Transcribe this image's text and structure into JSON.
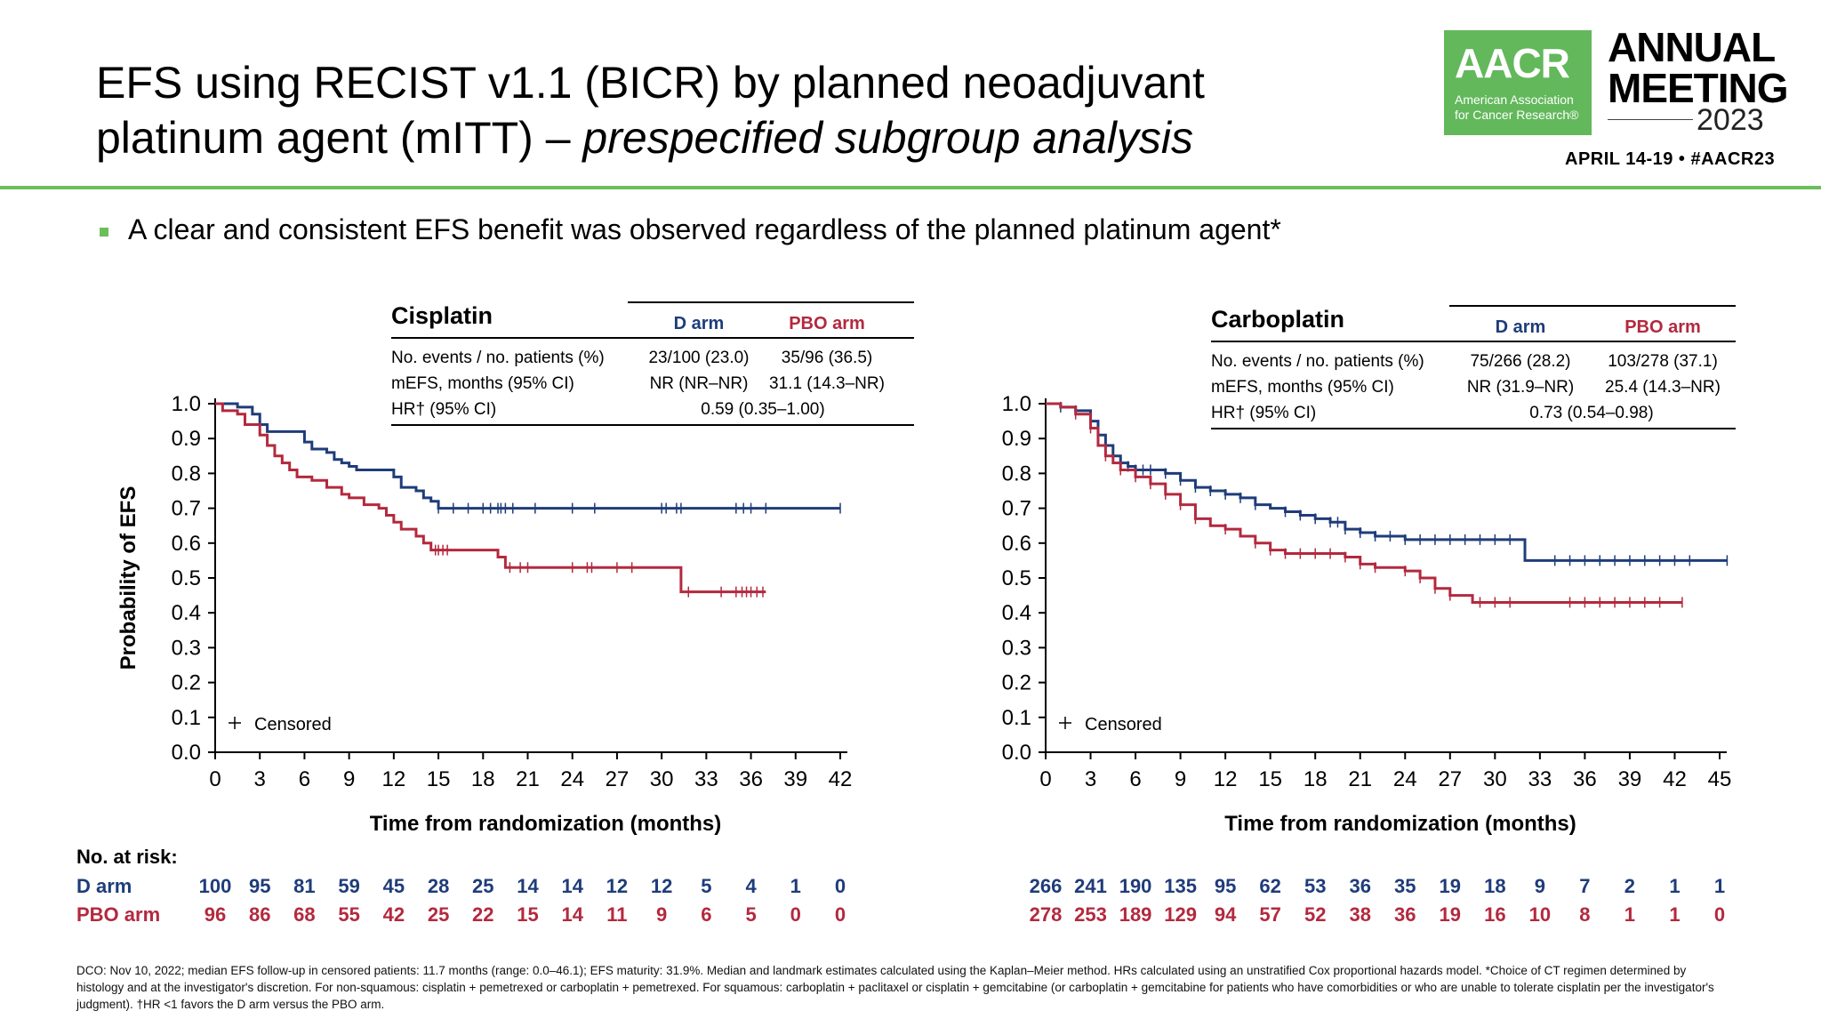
{
  "slide": {
    "title_line1": "EFS using RECIST v1.1 (BICR) by planned neoadjuvant",
    "title_line2_plain": "platinum agent (mITT) – ",
    "title_line2_italic": "prespecified subgroup analysis",
    "bullet": "A clear and consistent EFS benefit was observed regardless of the planned platinum agent*",
    "footnote": "DCO: Nov 10, 2022; median EFS follow-up in censored patients: 11.7 months (range: 0.0–46.1); EFS maturity: 31.9%. Median and landmark estimates calculated using the Kaplan–Meier method. HRs calculated using an unstratified Cox proportional hazards model. *Choice of CT regimen determined by histology and at the investigator's discretion. For non-squamous: cisplatin + pemetrexed or carboplatin + pemetrexed. For squamous: carboplatin + paclitaxel or cisplatin + gemcitabine (or carboplatin + gemcitabine for patients who have comorbidities or who are unable to tolerate cisplatin per the investigator's judgment). †HR <1 favors the D arm versus the PBO arm.",
    "risk_header": "No. at risk:"
  },
  "logo": {
    "acronym": "AACR",
    "org_line1": "American Association",
    "org_line2": "for Cancer Research®",
    "meeting_line1": "ANNUAL",
    "meeting_line2": "MEETING",
    "year": "2023",
    "dates": "APRIL 14-19 • #AACR23"
  },
  "colors": {
    "d_arm": "#1f3c7a",
    "pbo_arm": "#b3293e",
    "accent": "#6bbf59"
  },
  "chart_data": [
    {
      "type": "line",
      "title": "Cisplatin",
      "xlabel": "Time from randomization (months)",
      "ylabel": "Probability of EFS",
      "xlim": [
        0,
        42
      ],
      "ylim": [
        0,
        1
      ],
      "xticks": [
        0,
        3,
        6,
        9,
        12,
        15,
        18,
        21,
        24,
        27,
        30,
        33,
        36,
        39,
        42
      ],
      "yticks": [
        "0.0",
        "0.1",
        "0.2",
        "0.3",
        "0.4",
        "0.5",
        "0.6",
        "0.7",
        "0.8",
        "0.9",
        "1.0"
      ],
      "censored_label": "Censored",
      "table": {
        "headers": [
          "D arm",
          "PBO arm"
        ],
        "rows": [
          {
            "label": "No. events / no. patients (%)",
            "d": "23/100 (23.0)",
            "pbo": "35/96 (36.5)"
          },
          {
            "label": "mEFS, months (95% CI)",
            "d": "NR (NR–NR)",
            "pbo": "31.1 (14.3–NR)"
          },
          {
            "label": "HR† (95% CI)",
            "hr": "0.59 (0.35–1.00)"
          }
        ]
      },
      "series": [
        {
          "name": "D arm",
          "steps": [
            [
              0,
              1.0
            ],
            [
              1.5,
              0.99
            ],
            [
              2.5,
              0.97
            ],
            [
              3,
              0.94
            ],
            [
              3.5,
              0.92
            ],
            [
              6,
              0.89
            ],
            [
              6.5,
              0.87
            ],
            [
              7.5,
              0.86
            ],
            [
              8,
              0.84
            ],
            [
              8.5,
              0.83
            ],
            [
              9,
              0.82
            ],
            [
              9.5,
              0.81
            ],
            [
              12,
              0.79
            ],
            [
              12.5,
              0.76
            ],
            [
              13.5,
              0.75
            ],
            [
              14,
              0.73
            ],
            [
              14.5,
              0.72
            ],
            [
              15,
              0.7
            ],
            [
              42,
              0.7
            ]
          ],
          "censor_x": [
            15,
            16,
            17,
            18,
            18.5,
            19,
            19.2,
            19.5,
            20,
            21.5,
            24,
            25.5,
            30,
            30.3,
            31,
            31.3,
            35,
            35.5,
            36,
            37,
            42
          ]
        },
        {
          "name": "PBO arm",
          "steps": [
            [
              0,
              1.0
            ],
            [
              0.5,
              0.98
            ],
            [
              1.5,
              0.97
            ],
            [
              2,
              0.94
            ],
            [
              3,
              0.91
            ],
            [
              3.5,
              0.88
            ],
            [
              4,
              0.85
            ],
            [
              4.5,
              0.83
            ],
            [
              5,
              0.81
            ],
            [
              5.5,
              0.79
            ],
            [
              6.5,
              0.78
            ],
            [
              7.5,
              0.76
            ],
            [
              8.5,
              0.74
            ],
            [
              9,
              0.73
            ],
            [
              10,
              0.71
            ],
            [
              11,
              0.7
            ],
            [
              11.5,
              0.68
            ],
            [
              12,
              0.66
            ],
            [
              12.5,
              0.64
            ],
            [
              13.5,
              0.62
            ],
            [
              14,
              0.6
            ],
            [
              14.5,
              0.58
            ],
            [
              19,
              0.56
            ],
            [
              19.5,
              0.53
            ],
            [
              31,
              0.53
            ],
            [
              31.3,
              0.46
            ],
            [
              37,
              0.46
            ]
          ],
          "censor_x": [
            14.8,
            15,
            15.3,
            15.6,
            19.8,
            20.5,
            21,
            24,
            25,
            25.3,
            27,
            28,
            31.8,
            34,
            35,
            35.4,
            35.7,
            36,
            36.4,
            36.8
          ]
        }
      ],
      "risk": {
        "x": [
          0,
          3,
          6,
          9,
          12,
          15,
          18,
          21,
          24,
          27,
          30,
          33,
          36,
          39,
          42
        ],
        "d_arm": [
          100,
          95,
          81,
          59,
          45,
          28,
          25,
          14,
          14,
          12,
          12,
          5,
          4,
          1,
          0
        ],
        "pbo_arm": [
          96,
          86,
          68,
          55,
          42,
          25,
          22,
          15,
          14,
          11,
          9,
          6,
          5,
          0,
          0
        ]
      }
    },
    {
      "type": "line",
      "title": "Carboplatin",
      "xlabel": "Time from randomization (months)",
      "ylabel": "",
      "xlim": [
        0,
        45
      ],
      "ylim": [
        0,
        1
      ],
      "xticks": [
        0,
        3,
        6,
        9,
        12,
        15,
        18,
        21,
        24,
        27,
        30,
        33,
        36,
        39,
        42,
        45
      ],
      "yticks": [
        "0.0",
        "0.1",
        "0.2",
        "0.3",
        "0.4",
        "0.5",
        "0.6",
        "0.7",
        "0.8",
        "0.9",
        "1.0"
      ],
      "censored_label": "Censored",
      "table": {
        "headers": [
          "D arm",
          "PBO arm"
        ],
        "rows": [
          {
            "label": "No. events / no. patients (%)",
            "d": "75/266 (28.2)",
            "pbo": "103/278 (37.1)"
          },
          {
            "label": "mEFS, months (95% CI)",
            "d": "NR (31.9–NR)",
            "pbo": "25.4 (14.3–NR)"
          },
          {
            "label": "HR† (95% CI)",
            "hr": "0.73 (0.54–0.98)"
          }
        ]
      },
      "series": [
        {
          "name": "D arm",
          "steps": [
            [
              0,
              1.0
            ],
            [
              1,
              0.99
            ],
            [
              2,
              0.98
            ],
            [
              3,
              0.95
            ],
            [
              3.5,
              0.91
            ],
            [
              4,
              0.88
            ],
            [
              4.5,
              0.85
            ],
            [
              5,
              0.83
            ],
            [
              5.5,
              0.82
            ],
            [
              6,
              0.81
            ],
            [
              8,
              0.8
            ],
            [
              9,
              0.78
            ],
            [
              10,
              0.76
            ],
            [
              11,
              0.75
            ],
            [
              12,
              0.74
            ],
            [
              13,
              0.73
            ],
            [
              14,
              0.71
            ],
            [
              15,
              0.7
            ],
            [
              16,
              0.69
            ],
            [
              17,
              0.68
            ],
            [
              18,
              0.67
            ],
            [
              19,
              0.66
            ],
            [
              20,
              0.64
            ],
            [
              21,
              0.63
            ],
            [
              22,
              0.62
            ],
            [
              24,
              0.61
            ],
            [
              31.5,
              0.61
            ],
            [
              32,
              0.55
            ],
            [
              45.5,
              0.55
            ]
          ],
          "censor_x": [
            1,
            2,
            3,
            5,
            5.5,
            6,
            6.5,
            7,
            8,
            9,
            10,
            11,
            12,
            13,
            14,
            16,
            17,
            18,
            19,
            19.5,
            20,
            21,
            22,
            23,
            24,
            25,
            26,
            27,
            28,
            29,
            30,
            31,
            34,
            35,
            36,
            37,
            38,
            39,
            40,
            41,
            42,
            43,
            45.5
          ]
        },
        {
          "name": "PBO arm",
          "steps": [
            [
              0,
              1.0
            ],
            [
              1,
              0.99
            ],
            [
              2,
              0.97
            ],
            [
              3,
              0.93
            ],
            [
              3.5,
              0.88
            ],
            [
              4,
              0.85
            ],
            [
              4.5,
              0.83
            ],
            [
              5,
              0.81
            ],
            [
              6,
              0.79
            ],
            [
              7,
              0.77
            ],
            [
              8,
              0.74
            ],
            [
              9,
              0.71
            ],
            [
              10,
              0.67
            ],
            [
              11,
              0.65
            ],
            [
              12,
              0.64
            ],
            [
              13,
              0.62
            ],
            [
              14,
              0.6
            ],
            [
              15,
              0.58
            ],
            [
              16,
              0.57
            ],
            [
              20,
              0.56
            ],
            [
              21,
              0.54
            ],
            [
              22,
              0.53
            ],
            [
              24,
              0.52
            ],
            [
              25,
              0.5
            ],
            [
              26,
              0.47
            ],
            [
              27,
              0.45
            ],
            [
              28.5,
              0.43
            ],
            [
              42.5,
              0.43
            ]
          ],
          "censor_x": [
            2,
            3,
            4,
            5,
            6,
            7,
            8,
            9,
            10,
            12,
            14,
            15,
            16,
            17,
            18,
            19,
            20,
            21,
            22,
            24,
            25,
            26,
            27,
            29,
            30,
            31,
            35,
            36,
            37,
            38,
            39,
            40,
            41,
            42.5
          ]
        }
      ],
      "risk": {
        "x": [
          0,
          3,
          6,
          9,
          12,
          15,
          18,
          21,
          24,
          27,
          30,
          33,
          36,
          39,
          42,
          45
        ],
        "d_arm": [
          266,
          241,
          190,
          135,
          95,
          62,
          53,
          36,
          35,
          19,
          18,
          9,
          7,
          2,
          1,
          1
        ],
        "pbo_arm": [
          278,
          253,
          189,
          129,
          94,
          57,
          52,
          38,
          36,
          19,
          16,
          10,
          8,
          1,
          1,
          0
        ]
      }
    }
  ]
}
